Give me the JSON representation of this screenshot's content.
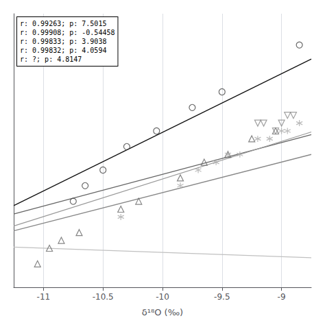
{
  "chart_data": {
    "type": "scatter",
    "xlabel": "δ¹⁸O (‰)",
    "xlim": [
      -11.25,
      -8.75
    ],
    "ylim": [
      -93,
      -58
    ],
    "xticks": [
      -11,
      -10.5,
      -10,
      -9.5,
      -9
    ],
    "yticks": [],
    "tick_labels": "x",
    "grid": true,
    "annotation": [
      "r: 0.99263; p: 7.5015",
      "r: 0.99908; p: -0.54458",
      "r: 0.99833; p: 3.9038",
      "r: 0.99832; p: 4.0594",
      "r: ?; p: 4.8147"
    ],
    "series": [
      {
        "type": "scatter",
        "marker": "circle",
        "color": "#444444",
        "x": [
          -10.75,
          -10.65,
          -10.5,
          -10.3,
          -10.05,
          -9.75,
          -9.5,
          -8.85
        ],
        "y": [
          -82,
          -80,
          -78,
          -75,
          -73,
          -70,
          -68,
          -62
        ]
      },
      {
        "type": "scatter",
        "marker": "triangle_up",
        "color": "#666666",
        "x": [
          -11.05,
          -10.95,
          -10.85,
          -10.7,
          -10.35,
          -10.2,
          -9.85,
          -9.65,
          -9.45,
          -9.25,
          -9.05
        ],
        "y": [
          -90,
          -88,
          -87,
          -86,
          -83,
          -82,
          -79,
          -77,
          -76,
          -74,
          -73
        ]
      },
      {
        "type": "scatter",
        "marker": "triangle_down",
        "color": "#888888",
        "x": [
          -9.2,
          -9.15,
          -9.05,
          -9.0,
          -8.95,
          -8.9
        ],
        "y": [
          -72,
          -72,
          -73,
          -72,
          -71,
          -71
        ]
      },
      {
        "type": "scatter",
        "marker": "asterisk",
        "color": "#aaaaaa",
        "x": [
          -10.35,
          -9.85,
          -9.7,
          -9.55,
          -9.45,
          -9.35,
          -9.2,
          -9.1,
          -9.0,
          -8.95,
          -8.85
        ],
        "y": [
          -84,
          -80,
          -78,
          -77,
          -76,
          -76,
          -74,
          -74,
          -73,
          -73,
          -72
        ]
      },
      {
        "type": "line",
        "line_style": "solid",
        "color": "#111111",
        "x": [
          -11.25,
          -8.75
        ],
        "y": [
          -82.548684375,
          -63.794934375
        ]
      },
      {
        "type": "line",
        "line_style": "solid",
        "color": "#c0c0c0",
        "x": [
          -11.25,
          -8.75
        ],
        "y": [
          -87.863855,
          -89.225305
        ]
      },
      {
        "type": "line",
        "line_style": "solid",
        "color": "#888888",
        "x": [
          -11.25,
          -8.75
        ],
        "y": [
          -85.7642836,
          -76.0047836
        ]
      },
      {
        "type": "line",
        "line_style": "solid",
        "color": "#666666",
        "x": [
          -11.25,
          -8.75
        ],
        "y": [
          -83.6192509,
          -73.4707509
        ]
      },
      {
        "type": "line",
        "line_style": "solid",
        "color": "#999999",
        "x": [
          -11.25,
          -8.75
        ],
        "y": [
          -85.168462,
          -73.131712
        ]
      }
    ]
  }
}
